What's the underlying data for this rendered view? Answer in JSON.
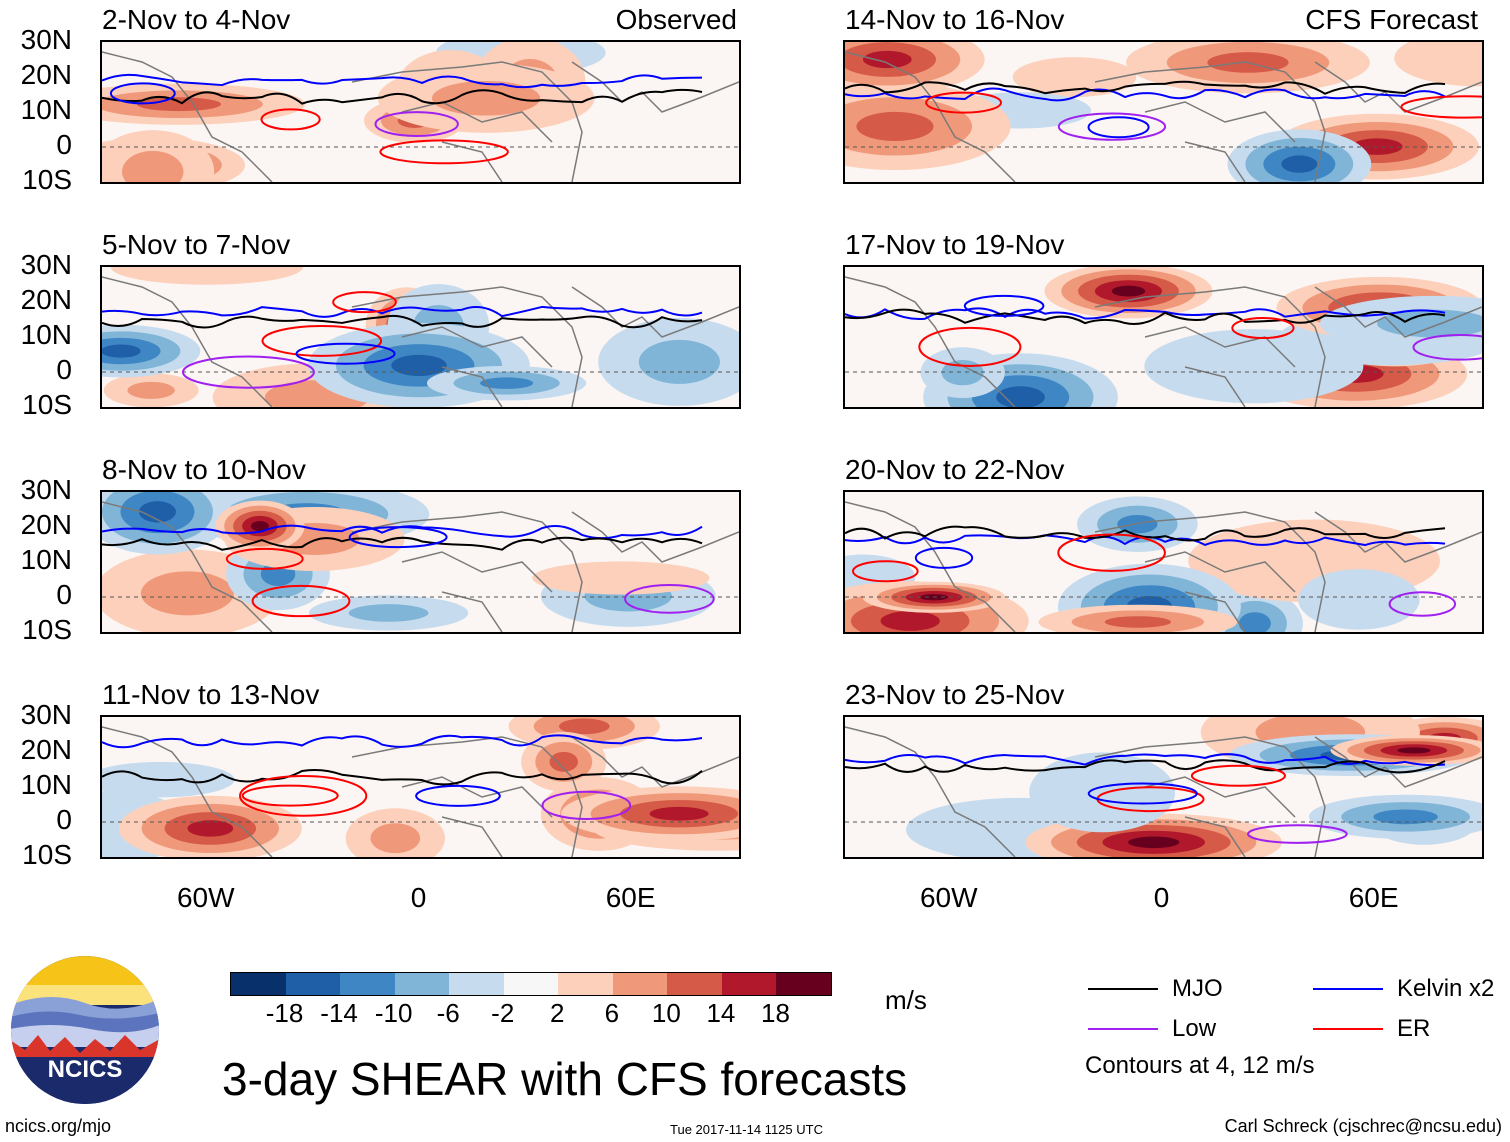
{
  "panels": [
    {
      "title": "2-Nov to 4-Nov",
      "tag": "Observed"
    },
    {
      "title": "5-Nov to 7-Nov",
      "tag": ""
    },
    {
      "title": "8-Nov to 10-Nov",
      "tag": ""
    },
    {
      "title": "11-Nov to 13-Nov",
      "tag": ""
    },
    {
      "title": "14-Nov to 16-Nov",
      "tag": "CFS Forecast"
    },
    {
      "title": "17-Nov to 19-Nov",
      "tag": ""
    },
    {
      "title": "20-Nov to 22-Nov",
      "tag": ""
    },
    {
      "title": "23-Nov to 25-Nov",
      "tag": ""
    }
  ],
  "lat_labels": [
    "30N",
    "20N",
    "10N",
    "0",
    "10S"
  ],
  "lon_labels": [
    "60W",
    "0",
    "60E"
  ],
  "colorbar": {
    "ticks": [
      "-18",
      "-14",
      "-10",
      "-6",
      "-2",
      "2",
      "6",
      "10",
      "14",
      "18"
    ],
    "colors": [
      "#08306b",
      "#1f5fa8",
      "#3f87c4",
      "#80b5d8",
      "#c6dcee",
      "#f7f7f7",
      "#fcd0bb",
      "#f0987a",
      "#d65a48",
      "#b2182b",
      "#67001f"
    ],
    "units": "m/s"
  },
  "title": "3-day SHEAR with CFS forecasts",
  "legend": [
    {
      "label": "MJO",
      "color": "#000000"
    },
    {
      "label": "Kelvin x2",
      "color": "#0000ff"
    },
    {
      "label": "Low",
      "color": "#a020f0"
    },
    {
      "label": "ER",
      "color": "#ff0000"
    }
  ],
  "contour_note": "Contours at 4, 12 m/s",
  "logo_text": "NCICS",
  "footer": {
    "left": "ncics.org/mjo",
    "center": "Tue 2017-11-14 1125 UTC",
    "right": "Carl Schreck (cjschrec@ncsu.edu)"
  }
}
